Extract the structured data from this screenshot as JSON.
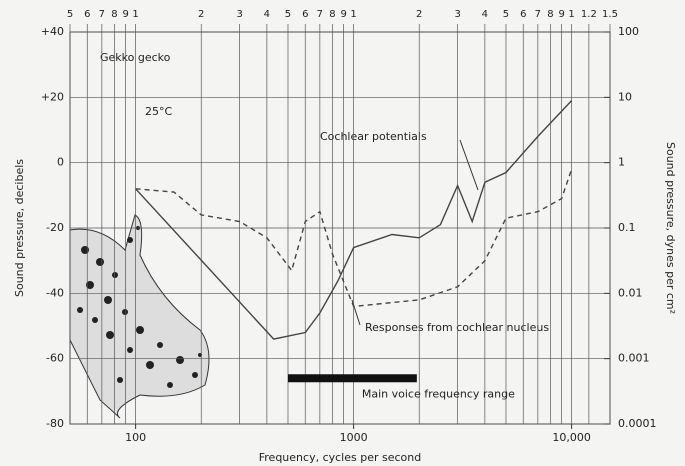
{
  "chart_data": {
    "type": "line",
    "xlabel": "Frequency, cycles per second",
    "ylabel": "Sound pressure, decibels",
    "y2label": "Sound pressure, dynes per cm²",
    "xscale": "log",
    "xlim": [
      50,
      15000
    ],
    "xticks": [
      100,
      1000,
      {
        "value": 10000,
        "label": "10,000"
      }
    ],
    "x2ticks": [
      {
        "value": 50,
        "label": "5"
      },
      {
        "value": 60,
        "label": "6"
      },
      {
        "value": 70,
        "label": "7"
      },
      {
        "value": 80,
        "label": "8"
      },
      {
        "value": 90,
        "label": "9"
      },
      {
        "value": 100,
        "label": "1"
      },
      {
        "value": 200,
        "label": "2"
      },
      {
        "value": 300,
        "label": "3"
      },
      {
        "value": 400,
        "label": "4"
      },
      {
        "value": 500,
        "label": "5"
      },
      {
        "value": 600,
        "label": "6"
      },
      {
        "value": 700,
        "label": "7"
      },
      {
        "value": 800,
        "label": "8"
      },
      {
        "value": 900,
        "label": "9"
      },
      {
        "value": 1000,
        "label": "1"
      },
      {
        "value": 2000,
        "label": "2"
      },
      {
        "value": 3000,
        "label": "3"
      },
      {
        "value": 4000,
        "label": "4"
      },
      {
        "value": 5000,
        "label": "5"
      },
      {
        "value": 6000,
        "label": "6"
      },
      {
        "value": 7000,
        "label": "7"
      },
      {
        "value": 8000,
        "label": "8"
      },
      {
        "value": 9000,
        "label": "9"
      },
      {
        "value": 10000,
        "label": "1"
      },
      {
        "value": 12000,
        "label": "1.2"
      },
      {
        "value": 15000,
        "label": "1.5"
      }
    ],
    "ylim": [
      -80,
      40
    ],
    "yticks": [
      {
        "value": 40,
        "label": "+40"
      },
      {
        "value": 20,
        "label": "+20"
      },
      0,
      -20,
      -40,
      -60,
      -80
    ],
    "y2scale": "log",
    "y2lim": [
      0.0001,
      100
    ],
    "y2ticks": [
      100,
      10,
      1,
      0.1,
      0.01,
      0.001,
      0.0001
    ],
    "grid": true,
    "series": [
      {
        "name": "Cochlear potentials",
        "color": "#444444",
        "linestyle": "solid",
        "x": [
          100,
          430,
          600,
          700,
          850,
          1000,
          1500,
          2000,
          2500,
          3000,
          3500,
          4000,
          5000,
          7000,
          10000
        ],
        "values": [
          -8,
          -54,
          -52,
          -46,
          -36,
          -26,
          -22,
          -23,
          -19,
          -7,
          -18,
          -6,
          -3,
          8,
          19
        ]
      },
      {
        "name": "Responses from cochlear nucleus",
        "color": "#444444",
        "linestyle": "dashed",
        "x": [
          100,
          150,
          200,
          300,
          400,
          520,
          600,
          700,
          800,
          1000,
          2000,
          3000,
          4000,
          5000,
          7000,
          9000,
          10000
        ],
        "values": [
          -8,
          -9,
          -16,
          -18,
          -23,
          -33,
          -18,
          -15,
          -28,
          -44,
          -42,
          -38,
          -30,
          -17,
          -15,
          -11,
          -2
        ]
      }
    ],
    "annotations": [
      {
        "text": "Gekko gecko"
      },
      {
        "text": "25°C"
      }
    ],
    "voice_range": {
      "label": "Main voice frequency range",
      "x": [
        500,
        1950
      ],
      "y": -66
    }
  }
}
